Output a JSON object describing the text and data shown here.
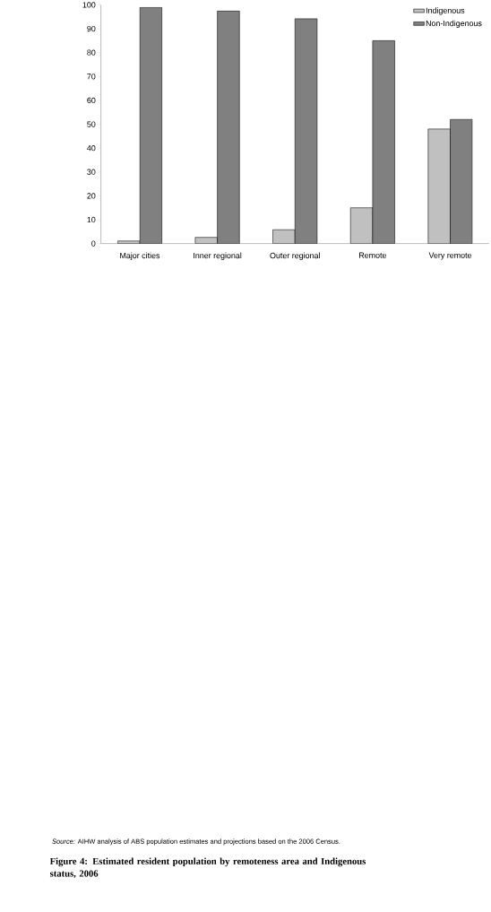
{
  "chart_data": {
    "type": "bar",
    "title": "Figure 4: Estimated resident population by remoteness area and Indigenous status, 2006",
    "annotations": [
      "*Source:* AIHW analysis of ABS population estimates and projections based on the 2006 Census."
    ],
    "categories": [
      "Major cities",
      "Inner regional",
      "Outer regional",
      "Remote",
      "Very remote"
    ],
    "series": [
      {
        "name": "Indigenous",
        "color": "#c0c0c0",
        "values": [
          1.1,
          2.6,
          5.8,
          15,
          48
        ]
      },
      {
        "name": "Non-Indigenous",
        "color": "#808080",
        "values": [
          98.9,
          97.4,
          94.2,
          85,
          52
        ]
      }
    ],
    "ylim": [
      0,
      100
    ],
    "yticks": [
      0,
      10,
      20,
      30,
      40,
      50,
      60,
      70,
      80,
      90,
      100
    ],
    "legend": "top right"
  }
}
